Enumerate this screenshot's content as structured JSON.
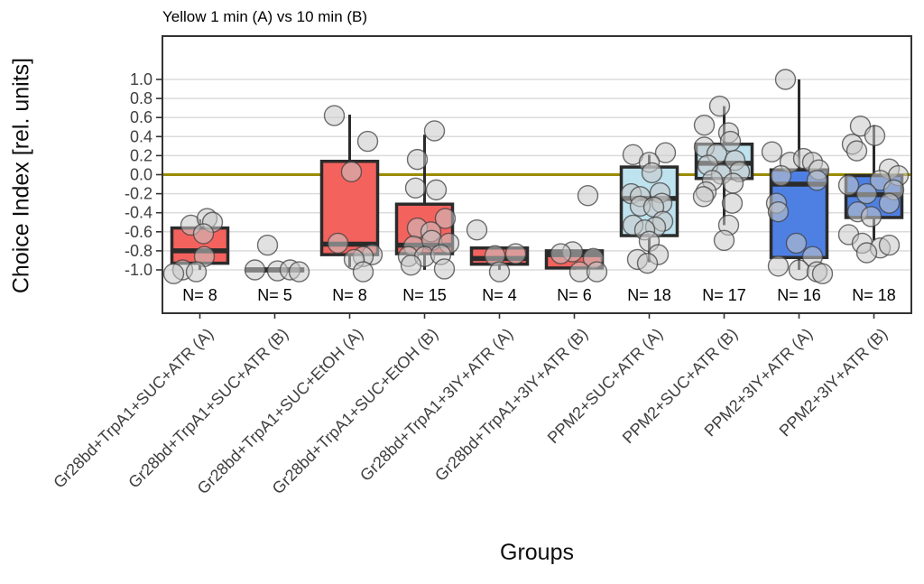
{
  "chart_data": {
    "type": "boxplot",
    "title": "Yellow 1 min (A) vs 10 min (B)",
    "x_axis": {
      "label": "Groups"
    },
    "y_axis": {
      "label": "Choice Index [rel. units]",
      "tick_values": [
        1.0,
        0.8,
        0.6,
        0.4,
        0.2,
        0.0,
        -0.2,
        -0.4,
        -0.6,
        -0.8,
        -1.0
      ],
      "tick_labels": [
        "1.0",
        "0.8",
        "0.6",
        "0.4",
        "0.2",
        "0.0",
        "-0.2",
        "-0.4",
        "-0.6",
        "-0.8",
        "-1.0"
      ],
      "range": [
        -1.45,
        1.45
      ]
    },
    "reference_line": {
      "value": 0.0,
      "color": "#9A8B00"
    },
    "style": {
      "grid_color": "#DBDBDB",
      "box_border_color": "#2B2B2B",
      "point_fill": "#C9C9C9",
      "point_stroke": "#404040",
      "panel_border_color": "#333333",
      "tick_text_color": "#404040",
      "legend": "none",
      "grid": "horizontal-major-only"
    },
    "groups": [
      {
        "label": "Gr28bd+TrpA1+SUC+ATR (A)",
        "n": 8,
        "n_label": "N= 8",
        "fill": "#F4625D",
        "q1": -0.93,
        "median": -0.8,
        "q3": -0.56,
        "whisker_low": -1.0,
        "whisker_high": -0.47,
        "points": [
          [
            -10,
            -0.53
          ],
          [
            8,
            -0.46
          ],
          [
            14,
            -0.5
          ],
          [
            4,
            -0.62
          ],
          [
            5,
            -0.86
          ],
          [
            -19,
            -1.0
          ],
          [
            -4,
            -1.02
          ],
          [
            -29,
            -1.04
          ]
        ]
      },
      {
        "label": "Gr28bd+TrpA1+SUC+ATR (B)",
        "n": 5,
        "n_label": "N= 5",
        "fill": "#F4625D",
        "q1": -1.01,
        "median": -1.0,
        "q3": -0.99,
        "whisker_low": -1.01,
        "whisker_high": -0.99,
        "points": [
          [
            -8,
            -0.74
          ],
          [
            -22,
            -1.0
          ],
          [
            3,
            -1.01
          ],
          [
            17,
            -1.0
          ],
          [
            27,
            -1.02
          ]
        ]
      },
      {
        "label": "Gr28bd+TrpA1+SUC+EtOH (A)",
        "n": 8,
        "n_label": "N= 8",
        "fill": "#F4625D",
        "q1": -0.84,
        "median": -0.73,
        "q3": 0.14,
        "whisker_low": -0.97,
        "whisker_high": 0.63,
        "points": [
          [
            -17,
            0.62
          ],
          [
            20,
            0.35
          ],
          [
            2,
            0.03
          ],
          [
            -13,
            -0.72
          ],
          [
            25,
            -0.84
          ],
          [
            15,
            -0.86
          ],
          [
            5,
            -0.89
          ],
          [
            15,
            -1.02
          ]
        ]
      },
      {
        "label": "Gr28bd+TrpA1+SUC+EtOH (B)",
        "n": 15,
        "n_label": "N= 15",
        "fill": "#F4625D",
        "q1": -0.83,
        "median": -0.74,
        "q3": -0.31,
        "whisker_low": -1.0,
        "whisker_high": 0.42,
        "points": [
          [
            11,
            0.46
          ],
          [
            -8,
            0.16
          ],
          [
            -10,
            -0.14
          ],
          [
            13,
            -0.16
          ],
          [
            23,
            -0.46
          ],
          [
            -8,
            -0.56
          ],
          [
            7,
            -0.6
          ],
          [
            -12,
            -0.75
          ],
          [
            8,
            -0.69
          ],
          [
            27,
            -0.72
          ],
          [
            -18,
            -0.86
          ],
          [
            0,
            -0.86
          ],
          [
            18,
            -0.84
          ],
          [
            -15,
            -0.95
          ],
          [
            22,
            -0.99
          ]
        ]
      },
      {
        "label": "Gr28bd+TrpA1+3IY+ATR (A)",
        "n": 4,
        "n_label": "N= 4",
        "fill": "#F4625D",
        "q1": -0.94,
        "median": -0.88,
        "q3": -0.77,
        "whisker_low": -1.0,
        "whisker_high": -0.77,
        "points": [
          [
            -25,
            -0.58
          ],
          [
            -5,
            -0.85
          ],
          [
            18,
            -0.83
          ],
          [
            0,
            -1.02
          ]
        ]
      },
      {
        "label": "Gr28bd+TrpA1+3IY+ATR (B)",
        "n": 6,
        "n_label": "N= 6",
        "fill": "#F4625D",
        "q1": -0.98,
        "median": -0.84,
        "q3": -0.8,
        "whisker_low": -1.0,
        "whisker_high": -0.8,
        "points": [
          [
            15,
            -0.22
          ],
          [
            -2,
            -0.81
          ],
          [
            -15,
            -0.83
          ],
          [
            21,
            -0.88
          ],
          [
            6,
            -1.02
          ],
          [
            25,
            -1.02
          ]
        ]
      },
      {
        "label": "PPM2+SUC+ATR (A)",
        "n": 18,
        "n_label": "N= 18",
        "fill": "#BEE3EF",
        "q1": -0.64,
        "median": -0.25,
        "q3": 0.08,
        "whisker_low": -0.92,
        "whisker_high": 0.21,
        "points": [
          [
            -18,
            0.21
          ],
          [
            18,
            0.23
          ],
          [
            0,
            0.13
          ],
          [
            3,
            0.02
          ],
          [
            -20,
            -0.2
          ],
          [
            12,
            -0.19
          ],
          [
            -10,
            -0.23
          ],
          [
            14,
            -0.3
          ],
          [
            -10,
            -0.33
          ],
          [
            5,
            -0.34
          ],
          [
            15,
            -0.49
          ],
          [
            -18,
            -0.53
          ],
          [
            7,
            -0.55
          ],
          [
            -5,
            -0.58
          ],
          [
            0,
            -0.7
          ],
          [
            10,
            -0.84
          ],
          [
            -13,
            -0.89
          ],
          [
            -2,
            -0.93
          ]
        ]
      },
      {
        "label": "PPM2+SUC+ATR (B)",
        "n": 17,
        "n_label": "N= 17",
        "fill": "#BEE3EF",
        "q1": -0.04,
        "median": 0.12,
        "q3": 0.32,
        "whisker_low": -0.53,
        "whisker_high": 0.72,
        "points": [
          [
            -5,
            0.72
          ],
          [
            -22,
            0.52
          ],
          [
            5,
            0.44
          ],
          [
            7,
            0.35
          ],
          [
            -22,
            0.29
          ],
          [
            -8,
            0.22
          ],
          [
            12,
            0.15
          ],
          [
            -18,
            0.1
          ],
          [
            17,
            0.03
          ],
          [
            -3,
            0.005
          ],
          [
            -13,
            -0.06
          ],
          [
            10,
            -0.09
          ],
          [
            -20,
            -0.18
          ],
          [
            -23,
            -0.23
          ],
          [
            9,
            -0.3
          ],
          [
            5,
            -0.53
          ],
          [
            0,
            -0.69
          ]
        ]
      },
      {
        "label": "PPM2+3IY+ATR (A)",
        "n": 16,
        "n_label": "N= 16",
        "fill": "#4E80E4",
        "q1": -0.87,
        "median": -0.1,
        "q3": 0.05,
        "whisker_low": -1.0,
        "whisker_high": 1.0,
        "points": [
          [
            -15,
            1.0
          ],
          [
            -30,
            0.24
          ],
          [
            -10,
            0.13
          ],
          [
            5,
            0.17
          ],
          [
            15,
            0.13
          ],
          [
            22,
            0.05
          ],
          [
            -20,
            -0.01
          ],
          [
            20,
            -0.06
          ],
          [
            -25,
            -0.3
          ],
          [
            -23,
            -0.39
          ],
          [
            -3,
            -0.72
          ],
          [
            15,
            -0.86
          ],
          [
            -23,
            -0.96
          ],
          [
            0,
            -1.0
          ],
          [
            20,
            -1.02
          ],
          [
            26,
            -1.04
          ]
        ]
      },
      {
        "label": "PPM2+3IY+ATR (B)",
        "n": 18,
        "n_label": "N= 18",
        "fill": "#4E80E4",
        "q1": -0.45,
        "median": -0.21,
        "q3": -0.01,
        "whisker_low": -0.69,
        "whisker_high": 0.52,
        "points": [
          [
            -15,
            0.51
          ],
          [
            1,
            0.41
          ],
          [
            -24,
            0.32
          ],
          [
            -19,
            0.25
          ],
          [
            17,
            0.06
          ],
          [
            27,
            -0.01
          ],
          [
            7,
            -0.06
          ],
          [
            -28,
            -0.11
          ],
          [
            22,
            -0.16
          ],
          [
            -8,
            -0.2
          ],
          [
            17,
            -0.3
          ],
          [
            -18,
            -0.39
          ],
          [
            -3,
            -0.44
          ],
          [
            -28,
            -0.63
          ],
          [
            -13,
            -0.72
          ],
          [
            7,
            -0.77
          ],
          [
            17,
            -0.74
          ],
          [
            -8,
            -0.82
          ]
        ]
      }
    ]
  }
}
